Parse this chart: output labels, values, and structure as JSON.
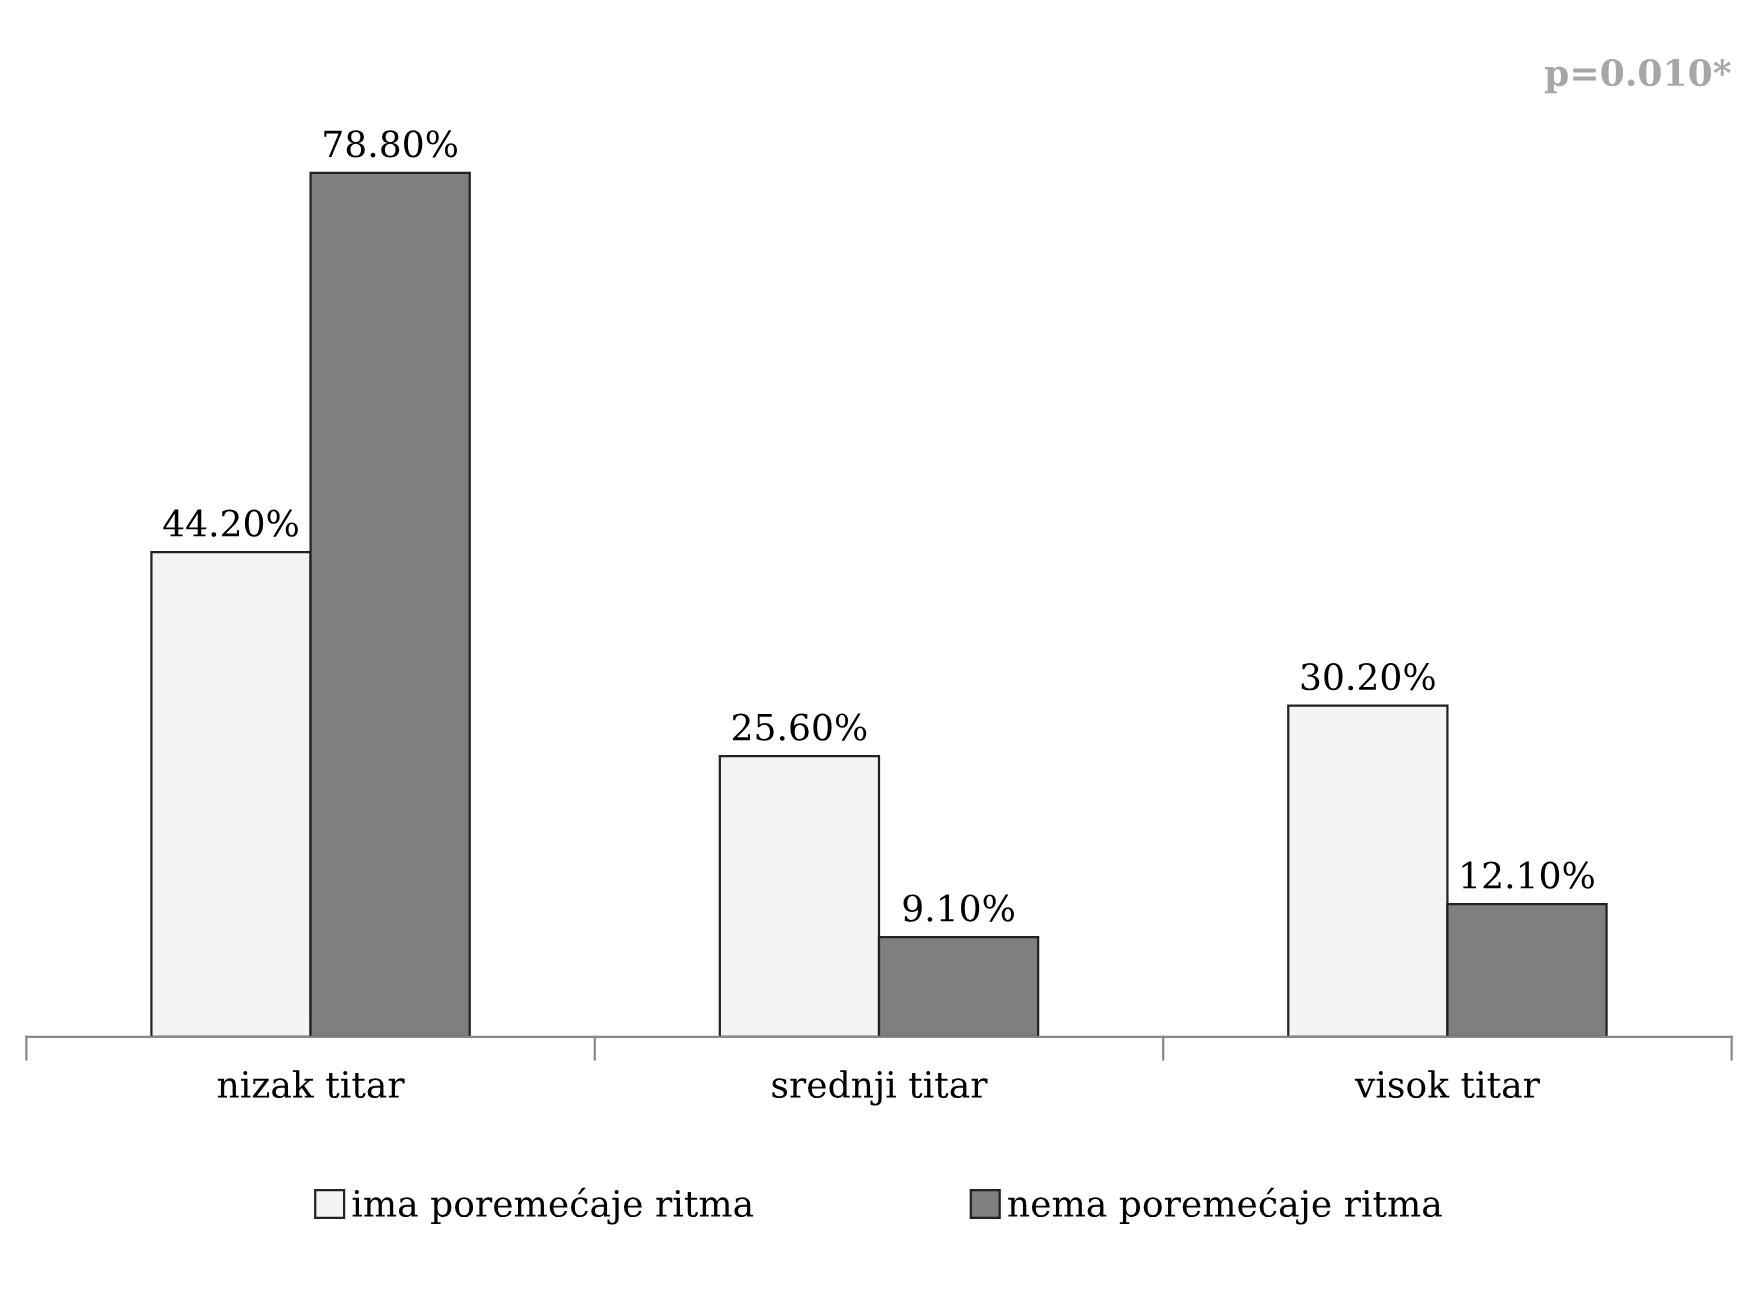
{
  "chart_data": {
    "type": "bar",
    "categories": [
      "nizak titar",
      "srednji titar",
      "visok titar"
    ],
    "series": [
      {
        "name": "ima poremećaje ritma",
        "color": "#f4f4f4",
        "values": [
          44.2,
          25.6,
          30.2
        ],
        "value_labels": [
          "44.20%",
          "25.60%",
          "30.20%"
        ]
      },
      {
        "name": "nema poremećaje ritma",
        "color": "#7f7f7f",
        "values": [
          78.8,
          9.1,
          12.1
        ],
        "value_labels": [
          "78.80%",
          "9.10%",
          "12.10%"
        ]
      }
    ],
    "annotations": [
      "p=0.010*"
    ],
    "legend": "bottom",
    "grid": false,
    "tick_labels": "x"
  }
}
